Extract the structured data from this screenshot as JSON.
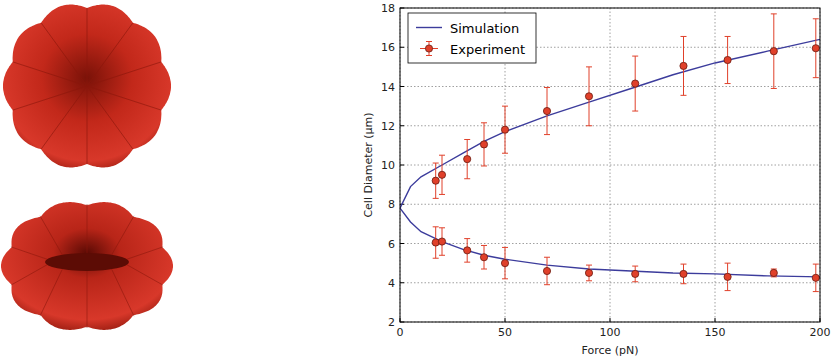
{
  "chart_data": {
    "type": "scatter",
    "xlabel": "Force (pN)",
    "ylabel": "Cell Diameter (μm)",
    "xlim": [
      0,
      200
    ],
    "ylim": [
      2,
      18
    ],
    "xticks": [
      0,
      50,
      100,
      150,
      200
    ],
    "yticks": [
      2,
      4,
      6,
      8,
      10,
      12,
      14,
      16,
      18
    ],
    "grid": true,
    "legend": "upper left",
    "series": [
      {
        "name": "Simulation",
        "type": "line",
        "color": "#3c3c9c",
        "line_style": "solid",
        "x": [
          200,
          175,
          150,
          130,
          110,
          90,
          70,
          50,
          40,
          30,
          20,
          10,
          5,
          0,
          5,
          10,
          20,
          30,
          40,
          50,
          70,
          90,
          110,
          130,
          150,
          175,
          200
        ],
        "values": [
          16.4,
          15.8,
          15.2,
          14.6,
          13.9,
          13.2,
          12.5,
          11.7,
          11.2,
          10.6,
          10.0,
          9.4,
          8.9,
          7.8,
          7.1,
          6.6,
          6.1,
          5.7,
          5.4,
          5.2,
          4.9,
          4.7,
          4.6,
          4.5,
          4.45,
          4.35,
          4.3
        ]
      },
      {
        "name": "Experiment",
        "type": "scatter",
        "color": "#e0402a",
        "marker": "o",
        "x": [
          17,
          20,
          32,
          40,
          50,
          70,
          90,
          112,
          135,
          156,
          178,
          198,
          17,
          20,
          32,
          40,
          50,
          70,
          90,
          112,
          135,
          156,
          178,
          198
        ],
        "values": [
          9.2,
          9.5,
          10.3,
          11.05,
          11.8,
          12.75,
          13.5,
          14.15,
          15.05,
          15.35,
          15.8,
          15.95,
          6.05,
          6.1,
          5.65,
          5.3,
          5.0,
          4.6,
          4.5,
          4.45,
          4.45,
          4.3,
          4.5,
          4.25
        ],
        "error": [
          0.9,
          1.0,
          1.0,
          1.1,
          1.2,
          1.2,
          1.5,
          1.4,
          1.5,
          1.2,
          1.9,
          1.5,
          0.8,
          0.7,
          0.6,
          0.6,
          0.8,
          0.7,
          0.4,
          0.4,
          0.5,
          0.7,
          0.2,
          0.7
        ]
      }
    ]
  }
}
